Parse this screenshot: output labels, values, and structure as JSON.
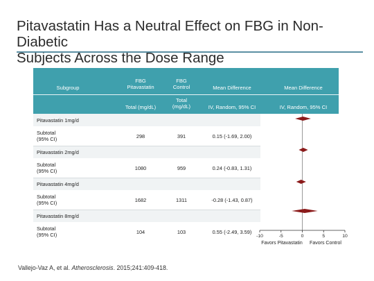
{
  "slide": {
    "title_line1": "Pitavastatin Has a Neutral Effect on FBG in Non-Diabetic",
    "title_line2": "Subjects Across the Dose Range"
  },
  "table": {
    "headers": {
      "subgroup": "Subgroup",
      "fbg_pita_l1": "FBG",
      "fbg_pita_l2": "Pitavastatin",
      "fbg_pita_unit": "Total (mg/dL)",
      "fbg_ctrl_l1": "FBG",
      "fbg_ctrl_l2": "Control",
      "fbg_ctrl_unit_l1": "Total",
      "fbg_ctrl_unit_l2": "(mg/dL)",
      "md1": "Mean Difference",
      "md1_sub": "IV, Random, 95% CI",
      "md2": "Mean Difference",
      "md2_sub": "IV, Random, 95% CI"
    },
    "rows": [
      {
        "group": "Pitavastatin 1mg/d",
        "subtotal_l1": "Subtotal",
        "subtotal_l2": "(95% CI)",
        "pita": "298",
        "ctrl": "391",
        "md": "0.15 (-1.69, 2.00)"
      },
      {
        "group": "Pitavastatin 2mg/d",
        "subtotal_l1": "Subtotal",
        "subtotal_l2": "(95% CI)",
        "pita": "1080",
        "ctrl": "959",
        "md": "0.24 (-0.83, 1.31)"
      },
      {
        "group": "Pitavastatin 4mg/d",
        "subtotal_l1": "Subtotal",
        "subtotal_l2": "(95% CI)",
        "pita": "1682",
        "ctrl": "1311",
        "md": "-0.28 (-1.43, 0.87)"
      },
      {
        "group": "Pitavastatin 8mg/d",
        "subtotal_l1": "Subtotal",
        "subtotal_l2": "(95% CI)",
        "pita": "104",
        "ctrl": "103",
        "md": "0.55 (-2.49, 3.59)"
      }
    ]
  },
  "chart_data": {
    "type": "forest",
    "x_ticks": [
      "-10",
      "-5",
      "0",
      "5",
      "10"
    ],
    "xlim": [
      -10,
      10
    ],
    "xlabel_left": "Favors Pitavastatin",
    "xlabel_right": "Favors Control",
    "points": [
      {
        "estimate": 0.15,
        "lo": -1.69,
        "hi": 2.0
      },
      {
        "estimate": 0.24,
        "lo": -0.83,
        "hi": 1.31
      },
      {
        "estimate": -0.28,
        "lo": -1.43,
        "hi": 0.87
      },
      {
        "estimate": 0.55,
        "lo": -2.49,
        "hi": 3.59
      }
    ],
    "marker_color": "#8b1a1a"
  },
  "citation": {
    "authors": "Vallejo-Vaz A, et al.",
    "journal": "Atherosclerosis",
    "details": "2015;241:409-418."
  }
}
